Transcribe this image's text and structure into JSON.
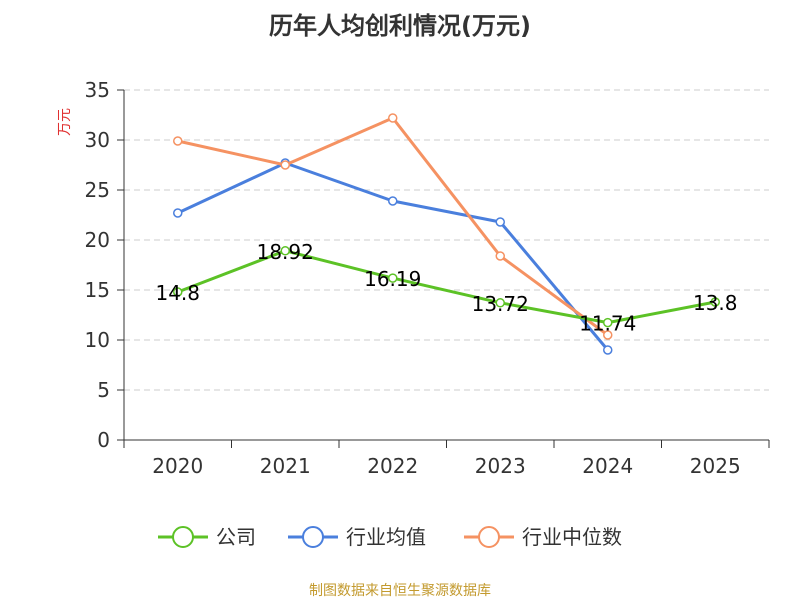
{
  "chart_data": {
    "type": "line",
    "title": "历年人均创利情况(万元)",
    "xlabel": "",
    "ylabel": "万元",
    "categories": [
      "2020",
      "2021",
      "2022",
      "2023",
      "2024",
      "2025"
    ],
    "ylim": [
      0,
      35
    ],
    "yticks": [
      0,
      5,
      10,
      15,
      20,
      25,
      30,
      35
    ],
    "yticks_text": [
      "0",
      "5",
      "10",
      "15",
      "20",
      "25",
      "30",
      "35"
    ],
    "grid": true,
    "legend_position": "bottom",
    "series": [
      {
        "name": "公司",
        "color": "#5cc226",
        "values": [
          14.8,
          18.92,
          16.19,
          13.72,
          11.74,
          13.8
        ],
        "labels": [
          "14.8",
          "18.92",
          "16.19",
          "13.72",
          "11.74",
          "13.8"
        ]
      },
      {
        "name": "行业均值",
        "color": "#4a7fdd",
        "values": [
          22.7,
          27.7,
          23.9,
          21.8,
          9.0,
          null
        ]
      },
      {
        "name": "行业中位数",
        "color": "#f59262",
        "values": [
          29.9,
          27.5,
          32.2,
          18.4,
          10.5,
          null
        ]
      }
    ]
  },
  "colors": {
    "axis": "#333333",
    "grid": "#cccccc",
    "ylabel": "#e03030",
    "source": "#c39a2e"
  },
  "source_note": "制图数据来自恒生聚源数据库"
}
